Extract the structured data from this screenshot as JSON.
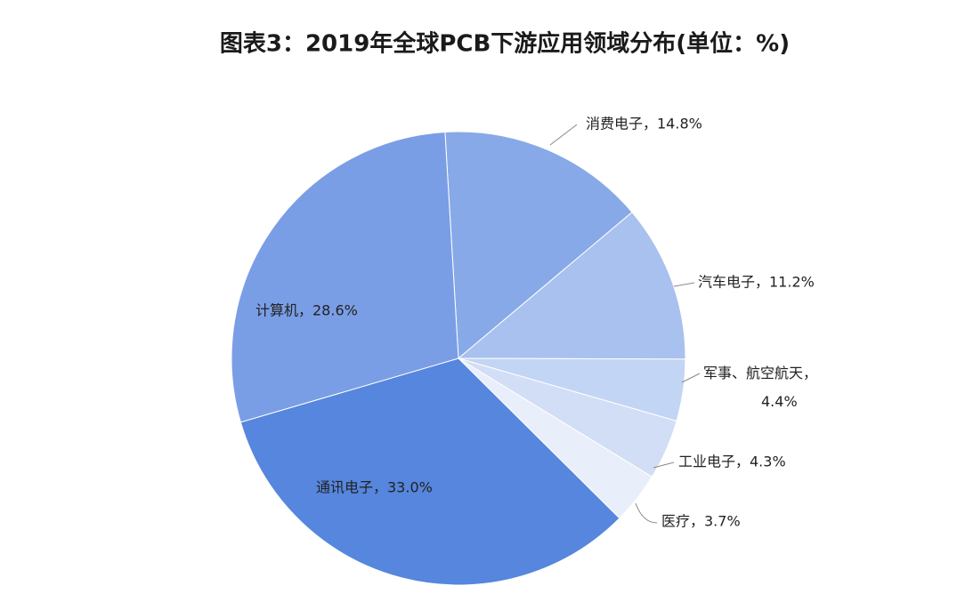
{
  "chart_data": {
    "type": "pie",
    "title": "图表3：2019年全球PCB下游应用领域分布(单位：%)",
    "values": [
      14.8,
      11.2,
      4.4,
      4.3,
      3.7,
      33.0,
      28.6
    ],
    "value_labels": [
      "消费电子，14.8%",
      "汽车电子，11.2%",
      "军事、航空航天，4.4%",
      "工业电子，4.3%",
      "医疗，3.7%",
      "通讯电子，33.0%",
      "计算机，28.6%"
    ],
    "colors": [
      "#87a9e8",
      "#a8c1ef",
      "#c3d5f4",
      "#d2def6",
      "#e8eefa",
      "#5686dd",
      "#7a9ee5"
    ]
  }
}
